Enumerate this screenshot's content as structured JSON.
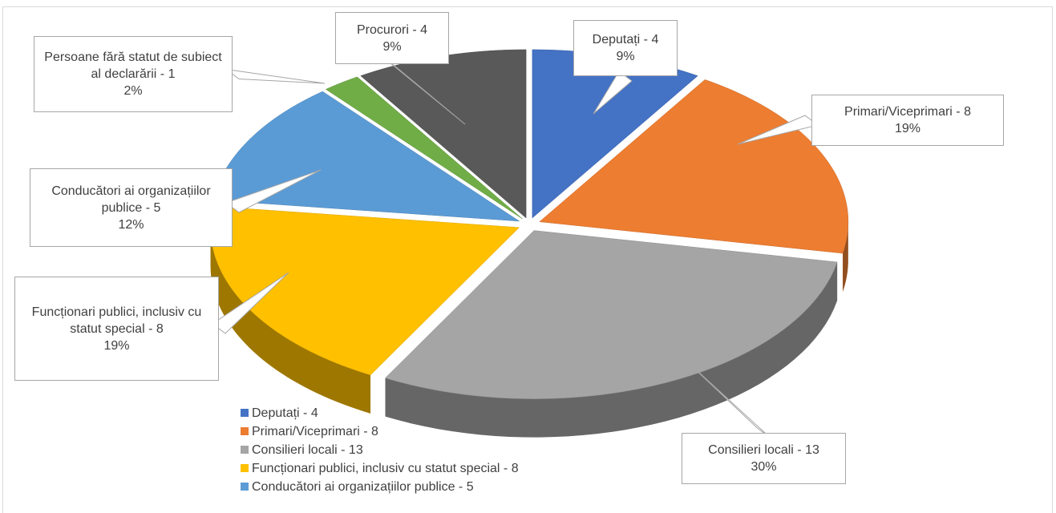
{
  "chart_data": {
    "type": "pie3d",
    "categories": [
      "Deputați - 4",
      "Primari/Viceprimari - 8",
      "Consilieri locali - 13",
      "Funcționari publici, inclusiv cu statut special - 8",
      "Conducători ai organizațiilor publice - 5",
      "Persoane fără statut de subiect al declarării - 1",
      "Procurori - 4"
    ],
    "values": [
      9,
      19,
      30,
      19,
      12,
      2,
      9
    ],
    "value_labels": [
      "9%",
      "19%",
      "30%",
      "19%",
      "12%",
      "2%",
      "9%"
    ],
    "colors": [
      "#4472c4",
      "#ed7d31",
      "#a5a5a5",
      "#ffc000",
      "#5b9bd5",
      "#70ad47",
      "#595959"
    ],
    "legend": "bottom-left"
  }
}
